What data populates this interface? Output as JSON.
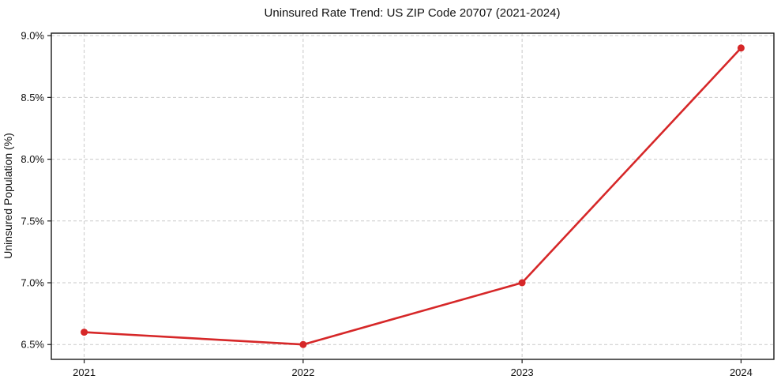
{
  "chart_data": {
    "type": "line",
    "title": "Uninsured Rate Trend: US ZIP Code 20707 (2021-2024)",
    "xlabel": "",
    "ylabel": "Uninsured Population (%)",
    "x": [
      2021,
      2022,
      2023,
      2024
    ],
    "values": [
      6.6,
      6.5,
      7.0,
      8.9
    ],
    "x_tick_labels": [
      "2021",
      "2022",
      "2023",
      "2024"
    ],
    "y_ticks": [
      6.5,
      7.0,
      7.5,
      8.0,
      8.5,
      9.0
    ],
    "y_tick_labels": [
      "6.5%",
      "7.0%",
      "7.5%",
      "8.0%",
      "8.5%",
      "9.0%"
    ],
    "xlim": [
      2020.85,
      2024.15
    ],
    "ylim": [
      6.38,
      9.02
    ],
    "grid": true,
    "grid_style": "dashed",
    "legend_position": "none",
    "marker": "circle",
    "colors": {
      "line": "#d62728",
      "marker": "#d62728",
      "grid": "#c9c9c9",
      "spine": "#1a1a1a",
      "background": "#ffffff"
    }
  }
}
